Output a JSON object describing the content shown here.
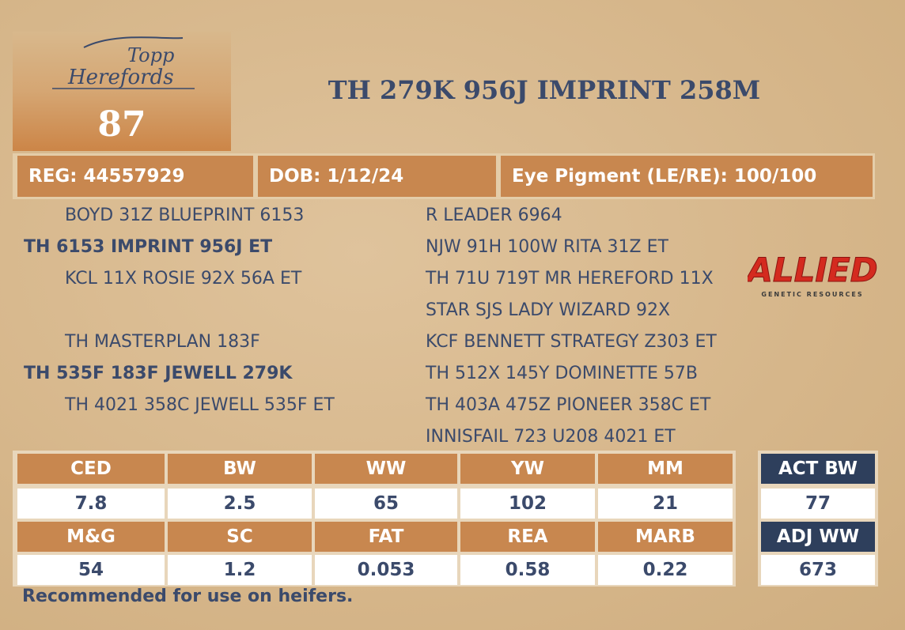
{
  "logo": {
    "line1": "Topp",
    "line2": "Herefords"
  },
  "lot": "87",
  "title": "TH 279K 956J IMPRINT 258M",
  "info": [
    "REG: 44557929",
    "DOB: 1/12/24",
    "Eye Pigment (LE/RE): 100/100"
  ],
  "pedigree": {
    "sire_side": {
      "sire_sire": "BOYD 31Z BLUEPRINT 6153",
      "sire": "TH 6153 IMPRINT 956J ET",
      "sire_dam": "KCL 11X ROSIE 92X 56A ET"
    },
    "dam_side": {
      "dam_sire": "TH MASTERPLAN 183F",
      "dam": "TH 535F 183F JEWELL 279K",
      "dam_dam": "TH 4021 358C JEWELL 535F ET"
    },
    "ancestors": [
      "R LEADER 6964",
      "NJW 91H 100W RITA 31Z ET",
      "TH 71U 719T MR HEREFORD 11X",
      "STAR SJS LADY WIZARD 92X",
      "KCF BENNETT STRATEGY Z303 ET",
      "TH 512X 145Y DOMINETTE 57B",
      "TH 403A 475Z PIONEER 358C ET",
      "INNISFAIL 723 U208 4021 ET"
    ]
  },
  "sponsor": {
    "name": "ALLIED",
    "tagline": "GENETIC RESOURCES"
  },
  "epd": {
    "rows": [
      {
        "headers": [
          "CED",
          "BW",
          "WW",
          "YW",
          "MM"
        ],
        "values": [
          "7.8",
          "2.5",
          "65",
          "102",
          "21"
        ]
      },
      {
        "headers": [
          "M&G",
          "SC",
          "FAT",
          "REA",
          "MARB"
        ],
        "values": [
          "54",
          "1.2",
          "0.053",
          "0.58",
          "0.22"
        ]
      }
    ]
  },
  "actual": [
    {
      "label": "ACT BW",
      "value": "77"
    },
    {
      "label": "ADJ WW",
      "value": "673"
    }
  ],
  "note": "Recommended for use on heifers."
}
